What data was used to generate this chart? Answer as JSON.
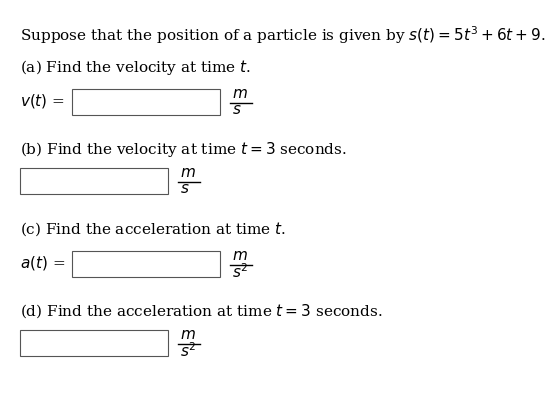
{
  "background_color": "#ffffff",
  "text_color": "#000000",
  "title_text": "Suppose that the position of a particle is given by $s(t) = 5t^3 + 6t + 9$.",
  "part_a_label": "(a) Find the velocity at time $t$.",
  "part_a_prefix": "$v(t)$ =",
  "part_a_units_num": "$m$",
  "part_a_units_den": "$s$",
  "part_b_label": "(b) Find the velocity at time $t = 3$ seconds.",
  "part_b_units_num": "$m$",
  "part_b_units_den": "$s$",
  "part_c_label": "(c) Find the acceleration at time $t$.",
  "part_c_prefix": "$a(t)$ =",
  "part_c_units_num": "$m$",
  "part_c_units_den": "$s^2$",
  "part_d_label": "(d) Find the acceleration at time $t = 3$ seconds.",
  "part_d_units_num": "$m$",
  "part_d_units_den": "$s^2$",
  "font_size_main": 11.0,
  "font_size_units": 11.0
}
